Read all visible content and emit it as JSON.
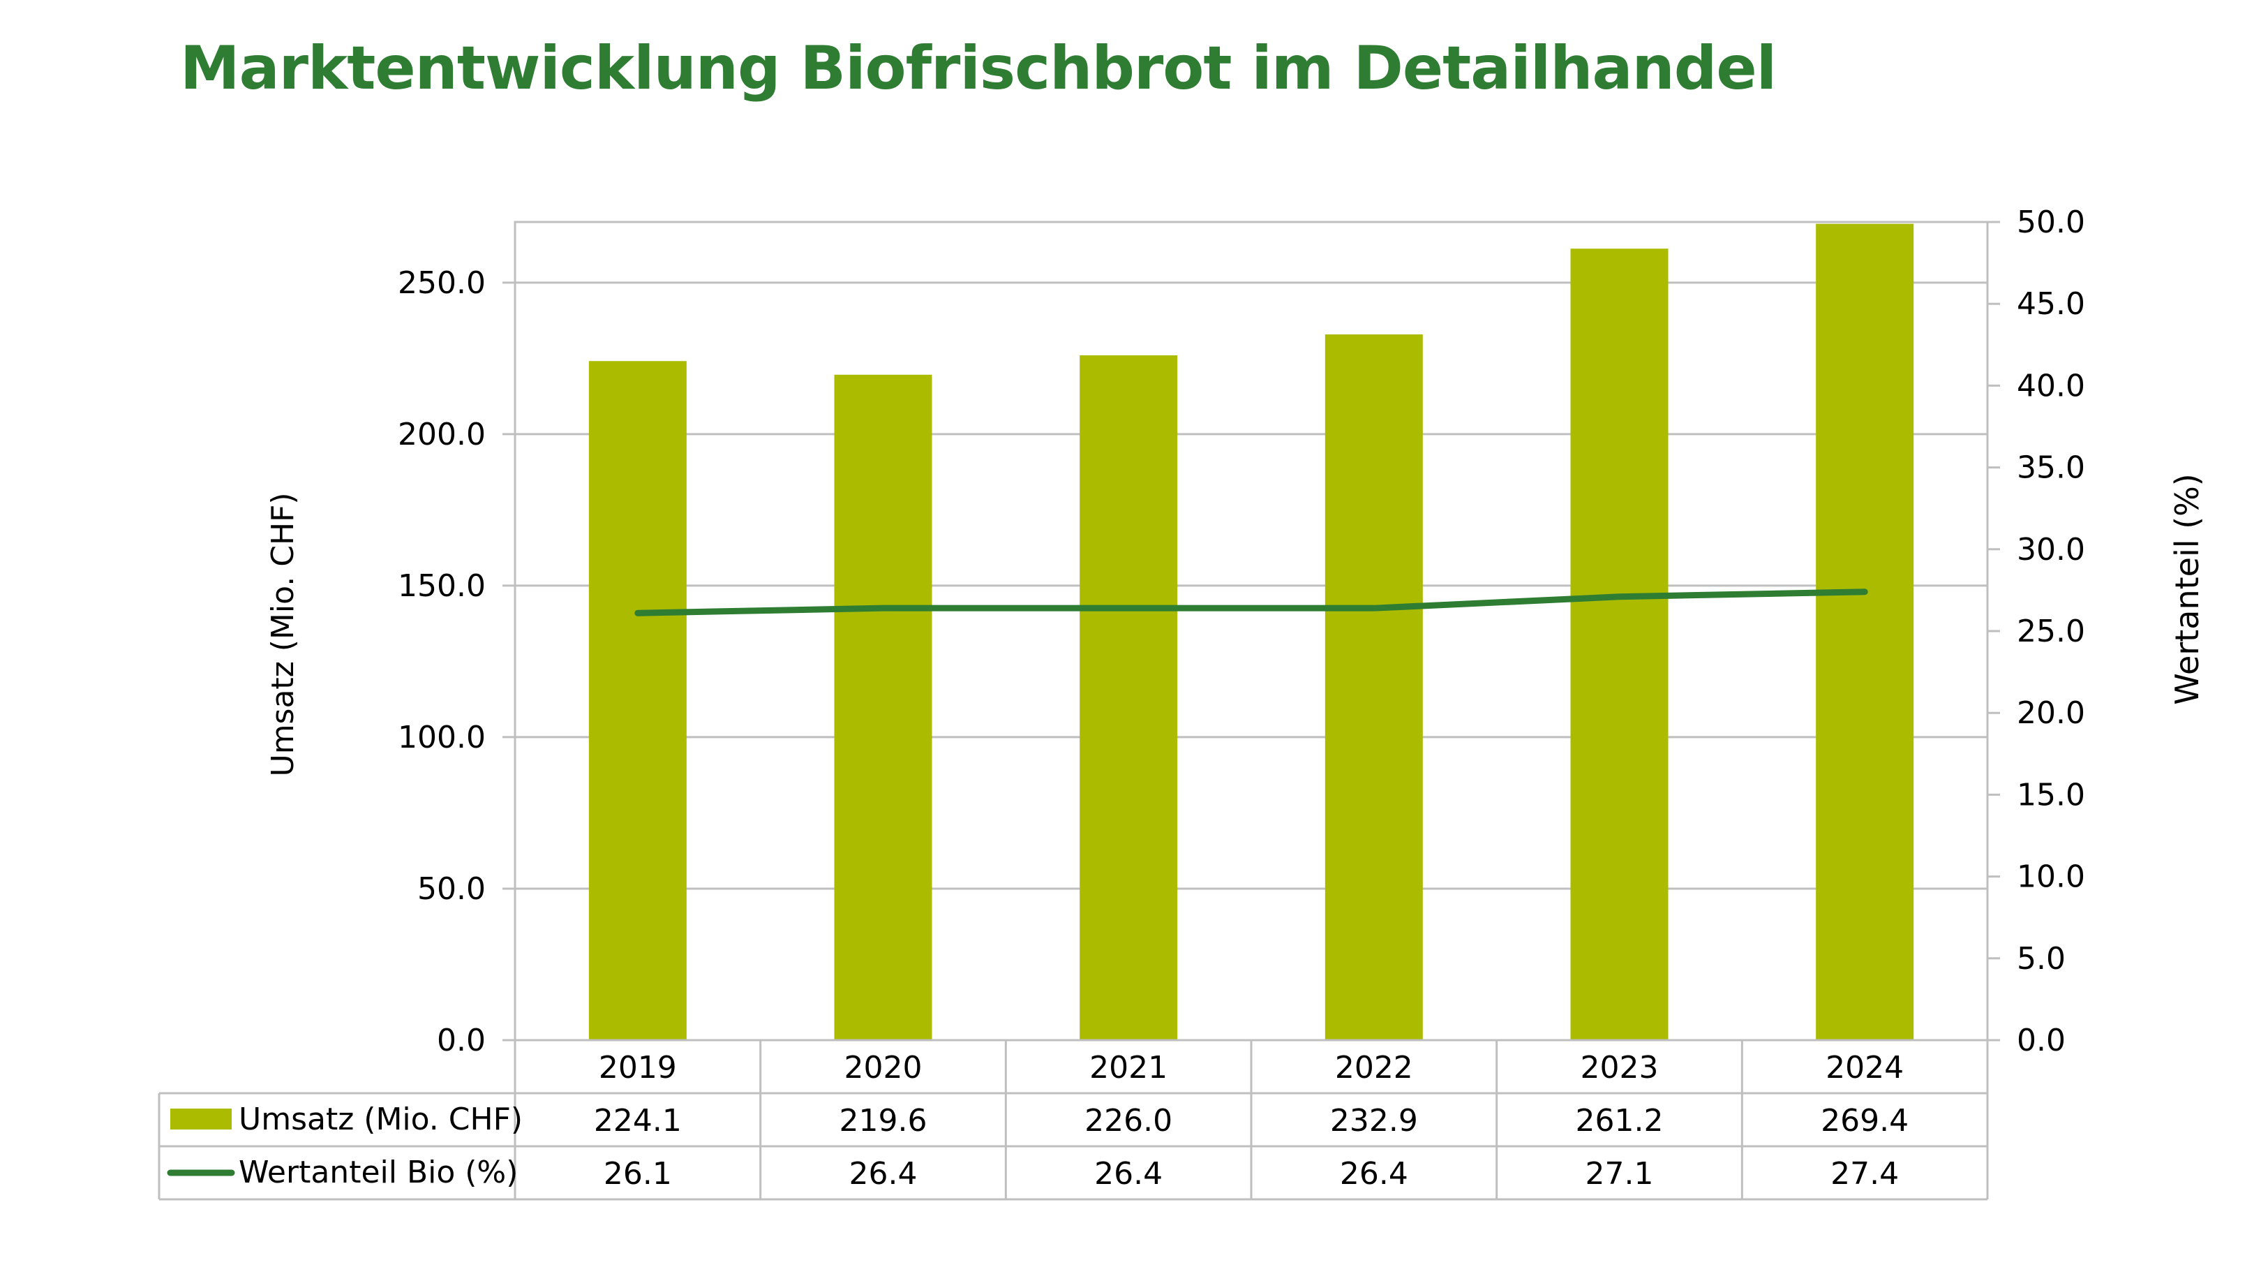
{
  "page": {
    "title": "Marktentwicklung Biofrischbrot im Detailhandel"
  },
  "colors": {
    "title": "#2e7d32",
    "bar": "#aabb00",
    "line": "#2e7d32",
    "grid": "#bfbfbf",
    "text": "#000000"
  },
  "chart_data": {
    "type": "bar",
    "title": "Marktentwicklung Biofrischbrot im Detailhandel",
    "categories": [
      "2019",
      "2020",
      "2021",
      "2022",
      "2023",
      "2024"
    ],
    "series": [
      {
        "name": "Umsatz (Mio. CHF)",
        "type": "bar",
        "axis": "left",
        "values": [
          224.1,
          219.6,
          226.0,
          232.9,
          261.2,
          269.4
        ],
        "labels": [
          "224.1",
          "219.6",
          "226.0",
          "232.9",
          "261.2",
          "269.4"
        ]
      },
      {
        "name": "Wertanteil Bio (%)",
        "type": "line",
        "axis": "right",
        "values": [
          26.1,
          26.4,
          26.4,
          26.4,
          27.1,
          27.4
        ],
        "labels": [
          "26.1",
          "26.4",
          "26.4",
          "26.4",
          "27.1",
          "27.4"
        ]
      }
    ],
    "y_left": {
      "label": "Umsatz (Mio. CHF)",
      "range": [
        0,
        270
      ],
      "ticks": [
        0,
        50,
        100,
        150,
        200,
        250
      ],
      "tick_labels": [
        "0.0",
        "50.0",
        "100.0",
        "150.0",
        "200.0",
        "250.0"
      ]
    },
    "y_right": {
      "label": "Wertanteil (%)",
      "range": [
        0,
        50
      ],
      "ticks": [
        0,
        5,
        10,
        15,
        20,
        25,
        30,
        35,
        40,
        45,
        50
      ],
      "tick_labels": [
        "0.0",
        "5.0",
        "10.0",
        "15.0",
        "20.0",
        "25.0",
        "30.0",
        "35.0",
        "40.0",
        "45.0",
        "50.0"
      ]
    },
    "grid": true,
    "legend": "data-table-below",
    "data_table": true
  }
}
